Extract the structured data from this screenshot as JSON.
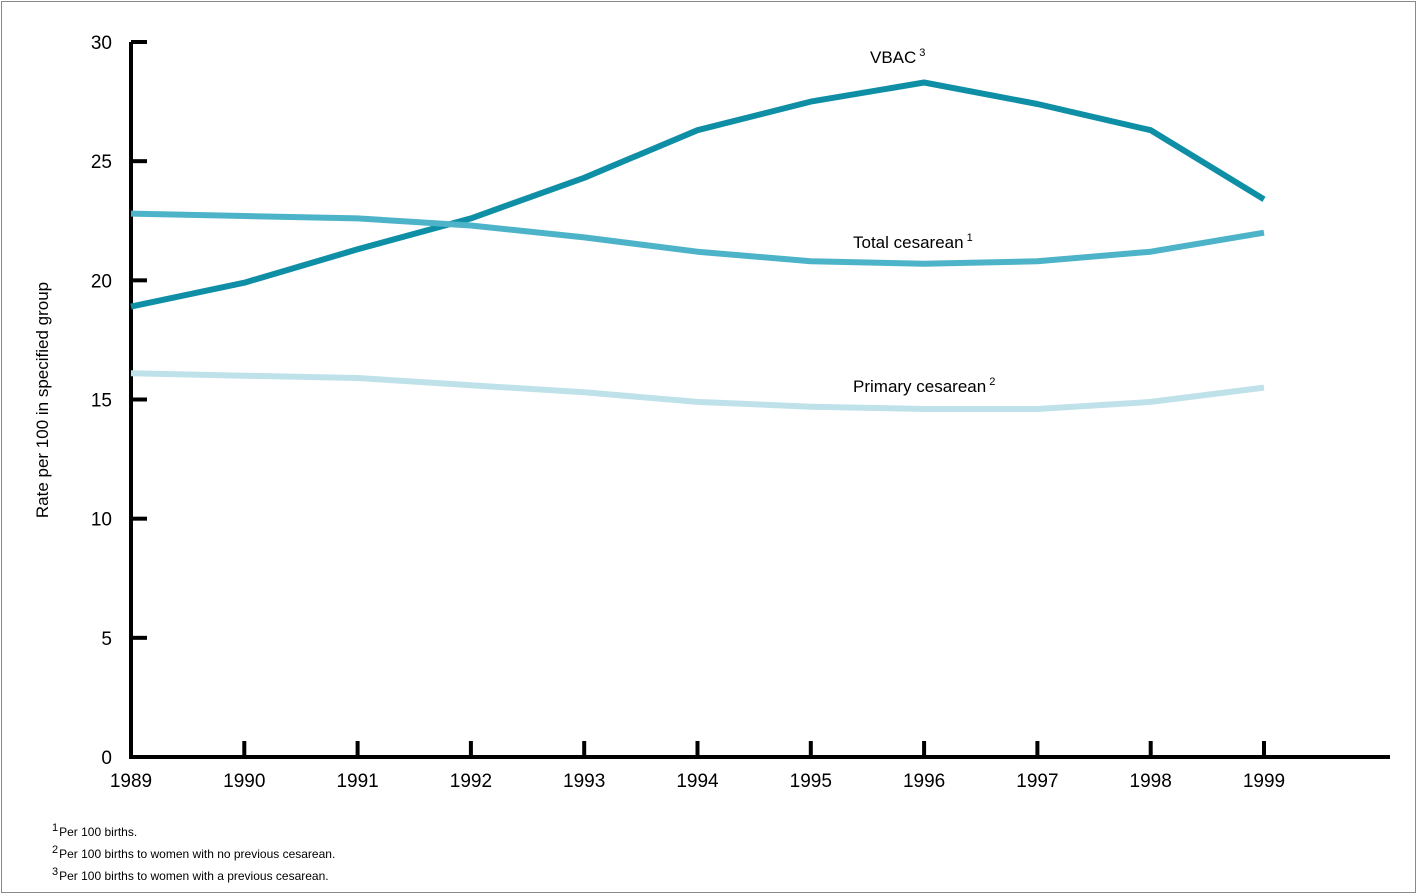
{
  "chart_data": {
    "type": "line",
    "ylabel": "Rate per 100 in specified group",
    "xlabel": "",
    "ylim": [
      0,
      30
    ],
    "yticks": [
      0,
      5,
      10,
      15,
      20,
      25,
      30
    ],
    "x": [
      1989,
      1990,
      1991,
      1992,
      1993,
      1994,
      1995,
      1996,
      1997,
      1998,
      1999
    ],
    "grid": false,
    "series": [
      {
        "name": "VBAC",
        "note_marker": "3",
        "color": "#0f8fa5",
        "values": [
          18.9,
          19.9,
          21.3,
          22.6,
          24.3,
          26.3,
          27.5,
          28.3,
          27.4,
          26.3,
          23.4
        ]
      },
      {
        "name": "Total cesarean",
        "note_marker": "1",
        "color": "#4db3c8",
        "values": [
          22.8,
          22.7,
          22.6,
          22.3,
          21.8,
          21.2,
          20.8,
          20.7,
          20.8,
          21.2,
          22.0
        ]
      },
      {
        "name": "Primary cesarean",
        "note_marker": "2",
        "color": "#bfe2ea",
        "values": [
          16.1,
          16.0,
          15.9,
          15.6,
          15.3,
          14.9,
          14.7,
          14.6,
          14.6,
          14.9,
          15.5
        ]
      }
    ],
    "footnotes": [
      {
        "marker": "1",
        "text": "Per 100 births."
      },
      {
        "marker": "2",
        "text": "Per 100 births to women with no previous cesarean."
      },
      {
        "marker": "3",
        "text": "Per 100 births to women with a previous cesarean."
      }
    ]
  }
}
